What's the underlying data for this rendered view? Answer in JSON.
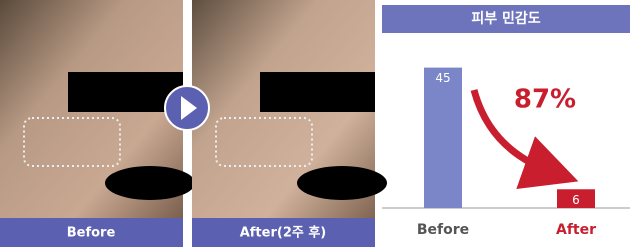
{
  "photos": [
    {
      "label": "Before"
    },
    {
      "label": "After(2주 후)"
    }
  ],
  "chart_data": {
    "type": "bar",
    "title": "피부 민감도",
    "categories": [
      "Before",
      "After"
    ],
    "values": [
      45,
      6
    ],
    "colors": [
      "#7a86c8",
      "#c81e2e"
    ],
    "ylim": [
      0,
      50
    ],
    "annotation": "87%"
  }
}
